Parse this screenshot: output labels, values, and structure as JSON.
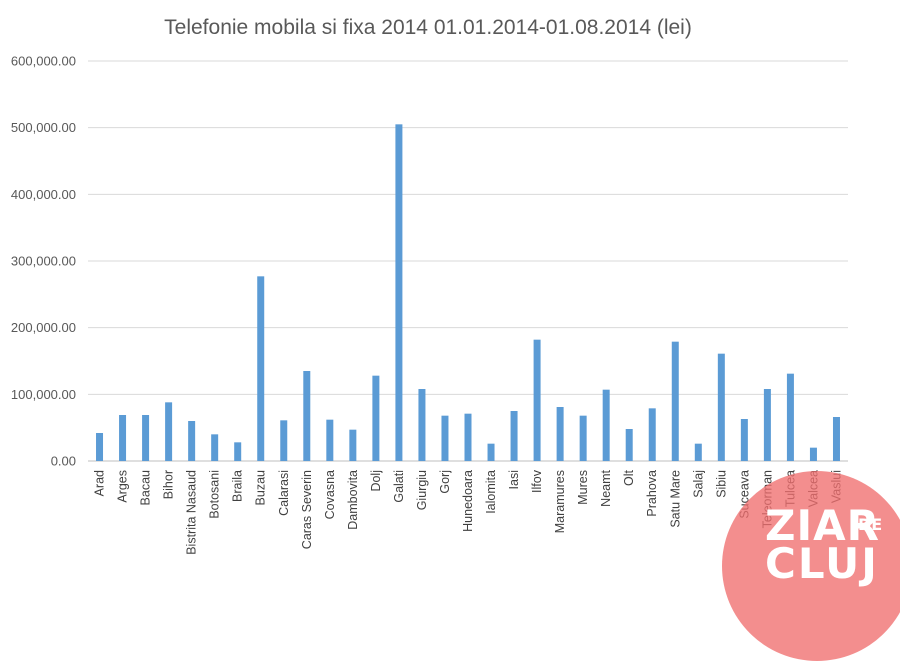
{
  "chart_data": {
    "type": "bar",
    "title": "Telefonie mobila si fixa 2014 01.01.2014-01.08.2014 (lei)",
    "xlabel": "",
    "ylabel": "",
    "ylim": [
      0,
      600000
    ],
    "yticks": [
      "0.00",
      "100,000.00",
      "200,000.00",
      "300,000.00",
      "400,000.00",
      "500,000.00",
      "600,000.00"
    ],
    "grid": true,
    "categories": [
      "Arad",
      "Arges",
      "Bacau",
      "Bihor",
      "Bistrita Nasaud",
      "Botosani",
      "Braila",
      "Buzau",
      "Calarasi",
      "Caras Severin",
      "Covasna",
      "Dambovita",
      "Dolj",
      "Galati",
      "Giurgiu",
      "Gorj",
      "Hunedoara",
      "Ialomita",
      "Iasi",
      "Ilfov",
      "Maramures",
      "Mures",
      "Neamt",
      "Olt",
      "Prahova",
      "Satu Mare",
      "Salaj",
      "Sibiu",
      "Suceava",
      "Teleorman",
      "Tulcea",
      "Valcea",
      "Vaslui"
    ],
    "values": [
      42000,
      69000,
      69000,
      88000,
      60000,
      40000,
      28000,
      277000,
      61000,
      135000,
      62000,
      47000,
      128000,
      505000,
      108000,
      68000,
      71000,
      26000,
      75000,
      182000,
      81000,
      68000,
      107000,
      48000,
      79000,
      179000,
      26000,
      161000,
      63000,
      108000,
      131000,
      20000,
      66000
    ],
    "color": "#5b9bd5"
  },
  "watermark": {
    "line1": "ZIAR",
    "de": "DE",
    "line2": "CLUJ",
    "color": "#f06e6e"
  }
}
